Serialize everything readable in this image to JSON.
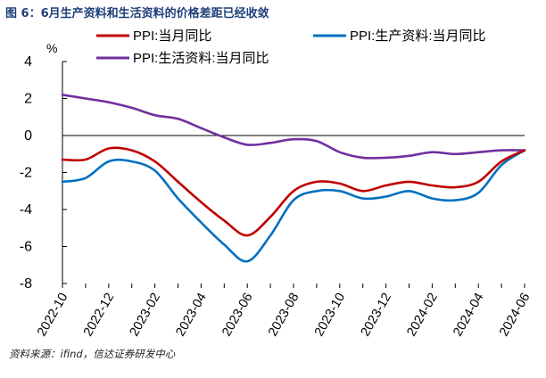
{
  "figure_title": "图 6：6月生产资料和生活资料的价格差距已经收敛",
  "source_text": "资料来源：ifind，信达证券研发中心",
  "chart_data": {
    "type": "line",
    "title": "6月生产资料和生活资料的价格差距已经收敛",
    "ylabel": "%",
    "xlabel": "",
    "ylim": [
      -8,
      4
    ],
    "yticks": [
      4,
      2,
      0,
      -2,
      -4,
      -6,
      -8
    ],
    "x_tick_labels": [
      "2022-10",
      "2022-12",
      "2023-02",
      "2023-04",
      "2023-06",
      "2023-08",
      "2023-10",
      "2023-12",
      "2024-02",
      "2024-04",
      "2024-06"
    ],
    "legend_position": "top",
    "categories": [
      "2022-10",
      "2022-11",
      "2022-12",
      "2023-01",
      "2023-02",
      "2023-03",
      "2023-04",
      "2023-05",
      "2023-06",
      "2023-07",
      "2023-08",
      "2023-09",
      "2023-10",
      "2023-11",
      "2023-12",
      "2024-01",
      "2024-02",
      "2024-03",
      "2024-04",
      "2024-05",
      "2024-06"
    ],
    "series": [
      {
        "name": "PPI:当月同比",
        "color": "#c00000",
        "values": [
          -1.3,
          -1.3,
          -0.7,
          -0.8,
          -1.4,
          -2.5,
          -3.6,
          -4.6,
          -5.4,
          -4.4,
          -3.0,
          -2.5,
          -2.6,
          -3.0,
          -2.7,
          -2.5,
          -2.7,
          -2.8,
          -2.5,
          -1.4,
          -0.8
        ]
      },
      {
        "name": "PPI:生产资料:当月同比",
        "color": "#0070c0",
        "values": [
          -2.5,
          -2.3,
          -1.4,
          -1.4,
          -1.9,
          -3.4,
          -4.7,
          -5.9,
          -6.8,
          -5.4,
          -3.5,
          -3.0,
          -3.0,
          -3.4,
          -3.3,
          -3.0,
          -3.4,
          -3.5,
          -3.1,
          -1.6,
          -0.8
        ]
      },
      {
        "name": "PPI:生活资料:当月同比",
        "color": "#7030a0",
        "values": [
          2.2,
          2.0,
          1.8,
          1.5,
          1.1,
          0.9,
          0.4,
          -0.1,
          -0.5,
          -0.4,
          -0.2,
          -0.3,
          -0.9,
          -1.2,
          -1.2,
          -1.1,
          -0.9,
          -1.0,
          -0.9,
          -0.8,
          -0.8
        ]
      }
    ]
  }
}
